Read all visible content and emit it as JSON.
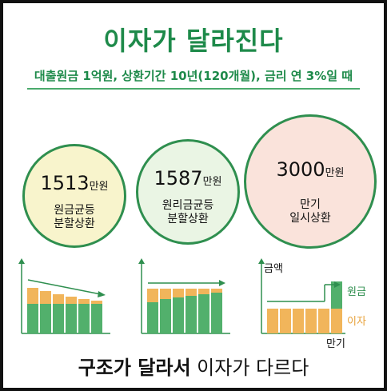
{
  "title": "이자가 달라진다",
  "subtitle": "대출원금 1억원, 상환기간 10년(120개월), 금리 연 3%일 때",
  "circles": [
    {
      "amount": "1513",
      "unit": "만원",
      "line1": "원금균등",
      "line2": "분할상환"
    },
    {
      "amount": "1587",
      "unit": "만원",
      "line1": "원리금균등",
      "line2": "분할상환"
    },
    {
      "amount": "3000",
      "unit": "만원",
      "line1": "만기",
      "line2": "일시상환"
    }
  ],
  "labels": {
    "amount": "금액",
    "principal": "원금",
    "interest": "이자",
    "maturity": "만기"
  },
  "footer": {
    "bold": "구조가 달라서",
    "rest": " 이자가 다르다"
  },
  "colors": {
    "green": "#2f8f4f",
    "lightgreen": "#52b06c",
    "orange": "#f1b55b",
    "title": "#1e8a4a"
  }
}
